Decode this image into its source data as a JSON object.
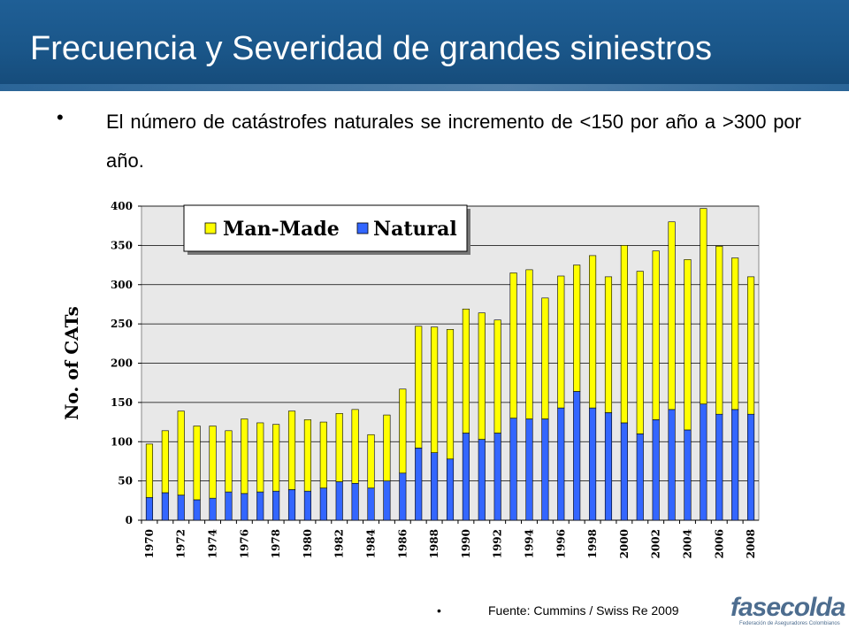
{
  "slide": {
    "title": "Frecuencia y Severidad de grandes siniestros",
    "bullet_marker": "•",
    "bullet_text": "El número de catástrofes naturales se incremento de <150 por año a >300 por año.",
    "source_text": "Fuente: Cummins / Swiss Re 2009",
    "logo_text": "fasecolda",
    "logo_subtext": "Federación de Aseguradores Colombianos"
  },
  "colors": {
    "header": "#1a5689",
    "man_made": "#ffff00",
    "natural": "#3366ff",
    "plot_bg": "#e8e8e8"
  },
  "chart_data": {
    "type": "bar",
    "stacked": true,
    "title": "",
    "xlabel": "",
    "ylabel": "No. of CATs",
    "ylim": [
      0,
      400
    ],
    "yticks": [
      0,
      50,
      100,
      150,
      200,
      250,
      300,
      350,
      400
    ],
    "grid": true,
    "legend_position": "top-left",
    "categories": [
      "1970",
      "1971",
      "1972",
      "1973",
      "1974",
      "1975",
      "1976",
      "1977",
      "1978",
      "1979",
      "1980",
      "1981",
      "1982",
      "1983",
      "1984",
      "1985",
      "1986",
      "1987",
      "1988",
      "1989",
      "1990",
      "1991",
      "1992",
      "1993",
      "1994",
      "1995",
      "1996",
      "1997",
      "1998",
      "1999",
      "2000",
      "2001",
      "2002",
      "2003",
      "2004",
      "2005",
      "2006",
      "2007",
      "2008"
    ],
    "tick_labels": [
      "1970",
      "1972",
      "1974",
      "1976",
      "1978",
      "1980",
      "1982",
      "1984",
      "1986",
      "1988",
      "1990",
      "1992",
      "1994",
      "1996",
      "1998",
      "2000",
      "2002",
      "2004",
      "2006",
      "2008"
    ],
    "series": [
      {
        "name": "Natural",
        "color": "#3366ff",
        "values": [
          29,
          35,
          32,
          26,
          28,
          36,
          34,
          36,
          37,
          39,
          37,
          41,
          49,
          47,
          41,
          50,
          60,
          92,
          86,
          78,
          111,
          103,
          111,
          130,
          129,
          129,
          143,
          164,
          143,
          137,
          124,
          110,
          128,
          141,
          115,
          148,
          135,
          141,
          135
        ]
      },
      {
        "name": "Man-Made",
        "color": "#ffff00",
        "values": [
          68,
          79,
          107,
          94,
          92,
          78,
          95,
          88,
          85,
          100,
          91,
          84,
          87,
          94,
          68,
          84,
          107,
          155,
          160,
          165,
          158,
          161,
          144,
          185,
          190,
          154,
          168,
          161,
          194,
          173,
          226,
          207,
          215,
          239,
          217,
          249,
          214,
          193,
          175
        ]
      }
    ]
  }
}
